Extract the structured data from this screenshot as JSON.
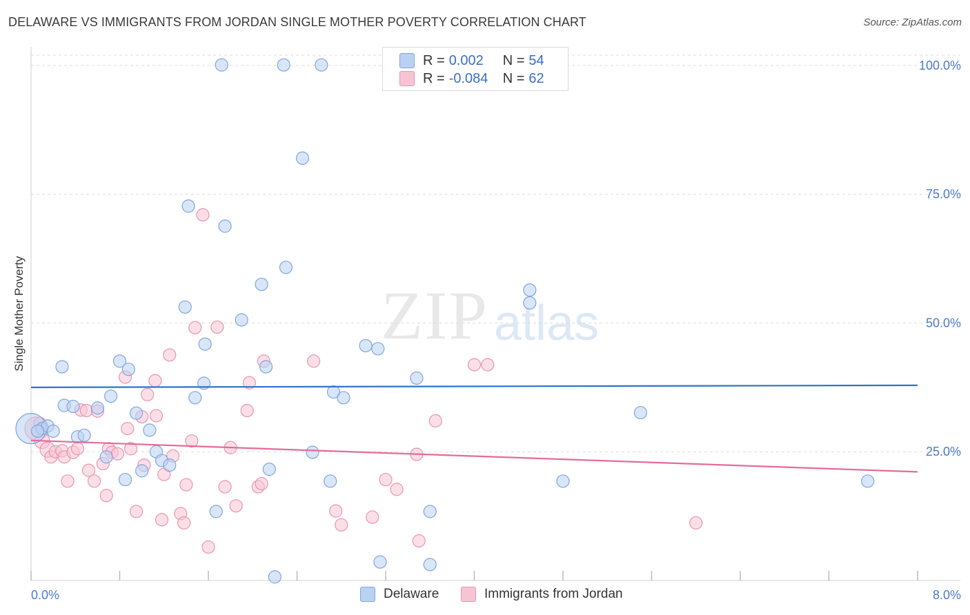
{
  "header": {
    "title": "DELAWARE VS IMMIGRANTS FROM JORDAN SINGLE MOTHER POVERTY CORRELATION CHART",
    "source": "Source: ZipAtlas.com"
  },
  "watermark": {
    "zip": "ZIP",
    "atlas": "atlas"
  },
  "legend_top": {
    "rows": [
      {
        "r_label": "R =",
        "r_value": "0.002",
        "n_label": "N =",
        "n_value": "54"
      },
      {
        "r_label": "R =",
        "r_value": "-0.084",
        "n_label": "N =",
        "n_value": "62"
      }
    ]
  },
  "legend_bottom": {
    "items": [
      {
        "label": "Delaware"
      },
      {
        "label": "Immigrants from Jordan"
      }
    ]
  },
  "colors": {
    "blue_fill": "#b9d1f2",
    "blue_stroke": "#7ea7dc",
    "blue_line": "#2f72c9",
    "pink_fill": "#f7c4d4",
    "pink_stroke": "#e994b0",
    "pink_line": "#e56b98",
    "grid": "#dcdcdc",
    "axis_text": "#4a7cc6"
  },
  "chart_data": {
    "type": "scatter",
    "title": "DELAWARE VS IMMIGRANTS FROM JORDAN SINGLE MOTHER POVERTY CORRELATION CHART",
    "xlabel": "",
    "ylabel": "Single Mother Poverty",
    "xlim": [
      0,
      8.0
    ],
    "ylim": [
      0,
      102
    ],
    "x_tick_labels": [
      "0.0%",
      "8.0%"
    ],
    "y_ticks": [
      25,
      50,
      75,
      100
    ],
    "y_tick_labels": [
      "25.0%",
      "50.0%",
      "75.0%",
      "100.0%"
    ],
    "grid": true,
    "legend_position": "top-center",
    "series": [
      {
        "name": "Delaware",
        "r": 0.002,
        "n": 54,
        "trend": {
          "x": [
            0,
            8.0
          ],
          "y": [
            37.5,
            37.9
          ]
        },
        "points": [
          [
            0.0,
            29.5,
            22
          ],
          [
            0.1,
            29.5,
            9
          ],
          [
            0.15,
            30.0,
            9
          ],
          [
            0.2,
            29.0,
            9
          ],
          [
            0.28,
            41.5,
            9
          ],
          [
            0.3,
            34.0,
            9
          ],
          [
            0.38,
            33.8,
            9
          ],
          [
            0.42,
            27.9,
            9
          ],
          [
            0.48,
            28.2,
            9
          ],
          [
            0.6,
            33.5,
            9
          ],
          [
            0.68,
            24.0,
            9
          ],
          [
            0.72,
            35.8,
            9
          ],
          [
            0.8,
            42.6,
            9
          ],
          [
            0.85,
            19.6,
            9
          ],
          [
            0.88,
            41.0,
            9
          ],
          [
            0.95,
            32.5,
            9
          ],
          [
            1.0,
            21.3,
            9
          ],
          [
            1.07,
            29.2,
            9
          ],
          [
            1.13,
            25.0,
            9
          ],
          [
            1.18,
            23.3,
            9
          ],
          [
            1.25,
            22.4,
            9
          ],
          [
            1.39,
            53.1,
            9
          ],
          [
            1.42,
            72.7,
            9
          ],
          [
            1.48,
            35.5,
            9
          ],
          [
            1.56,
            38.3,
            9
          ],
          [
            1.57,
            45.9,
            9
          ],
          [
            1.67,
            13.4,
            9
          ],
          [
            1.75,
            68.8,
            9
          ],
          [
            1.72,
            100.1,
            9
          ],
          [
            1.9,
            50.6,
            9
          ],
          [
            2.08,
            57.5,
            9
          ],
          [
            2.12,
            41.5,
            9
          ],
          [
            2.2,
            0.7,
            9
          ],
          [
            2.15,
            21.6,
            9
          ],
          [
            2.3,
            60.8,
            9
          ],
          [
            2.28,
            100.1,
            9
          ],
          [
            2.45,
            82.0,
            9
          ],
          [
            2.54,
            24.9,
            9
          ],
          [
            2.62,
            100.1,
            9
          ],
          [
            2.7,
            19.3,
            9
          ],
          [
            2.73,
            36.6,
            9
          ],
          [
            2.82,
            35.5,
            9
          ],
          [
            3.02,
            45.6,
            9
          ],
          [
            3.13,
            45.0,
            9
          ],
          [
            3.15,
            3.6,
            9
          ],
          [
            3.48,
            39.3,
            9
          ],
          [
            3.6,
            3.1,
            9
          ],
          [
            3.6,
            13.4,
            9
          ],
          [
            4.5,
            56.4,
            9
          ],
          [
            4.5,
            53.9,
            9
          ],
          [
            4.8,
            19.3,
            9
          ],
          [
            5.5,
            32.6,
            9
          ],
          [
            7.55,
            19.3,
            9
          ],
          [
            0.06,
            29.0,
            9
          ]
        ]
      },
      {
        "name": "Immigrants from Jordan",
        "r": -0.084,
        "n": 62,
        "trend": {
          "x": [
            0,
            8.0
          ],
          "y": [
            27.2,
            21.1
          ]
        },
        "points": [
          [
            0.05,
            29.5,
            17
          ],
          [
            0.1,
            27.1,
            11
          ],
          [
            0.15,
            25.4,
            11
          ],
          [
            0.18,
            24.0,
            9
          ],
          [
            0.22,
            25.0,
            9
          ],
          [
            0.28,
            25.2,
            9
          ],
          [
            0.3,
            24.0,
            9
          ],
          [
            0.33,
            19.3,
            9
          ],
          [
            0.38,
            24.9,
            9
          ],
          [
            0.42,
            25.6,
            9
          ],
          [
            0.45,
            33.1,
            9
          ],
          [
            0.5,
            33.0,
            9
          ],
          [
            0.52,
            21.4,
            9
          ],
          [
            0.57,
            19.3,
            9
          ],
          [
            0.6,
            32.9,
            9
          ],
          [
            0.65,
            22.7,
            9
          ],
          [
            0.68,
            16.5,
            9
          ],
          [
            0.7,
            25.6,
            9
          ],
          [
            0.73,
            24.9,
            9
          ],
          [
            0.78,
            24.6,
            9
          ],
          [
            0.85,
            39.5,
            9
          ],
          [
            0.87,
            29.5,
            9
          ],
          [
            0.9,
            25.6,
            9
          ],
          [
            0.95,
            13.4,
            9
          ],
          [
            1.0,
            31.8,
            9
          ],
          [
            1.02,
            22.4,
            9
          ],
          [
            1.05,
            36.1,
            9
          ],
          [
            1.12,
            38.8,
            9
          ],
          [
            1.13,
            32.0,
            9
          ],
          [
            1.18,
            11.8,
            9
          ],
          [
            1.2,
            20.6,
            9
          ],
          [
            1.25,
            43.8,
            9
          ],
          [
            1.28,
            24.2,
            9
          ],
          [
            1.35,
            13.0,
            9
          ],
          [
            1.38,
            11.2,
            9
          ],
          [
            1.4,
            18.6,
            9
          ],
          [
            1.45,
            27.1,
            9
          ],
          [
            1.48,
            49.1,
            9
          ],
          [
            1.55,
            71.0,
            9
          ],
          [
            1.6,
            6.5,
            9
          ],
          [
            1.68,
            49.2,
            9
          ],
          [
            1.75,
            18.2,
            9
          ],
          [
            1.8,
            25.8,
            9
          ],
          [
            1.85,
            14.5,
            9
          ],
          [
            1.95,
            33.0,
            9
          ],
          [
            1.97,
            38.4,
            9
          ],
          [
            2.05,
            18.2,
            9
          ],
          [
            2.08,
            18.8,
            9
          ],
          [
            2.1,
            42.6,
            9
          ],
          [
            2.55,
            42.6,
            9
          ],
          [
            2.75,
            13.5,
            9
          ],
          [
            2.8,
            10.8,
            9
          ],
          [
            3.08,
            12.3,
            9
          ],
          [
            3.2,
            19.6,
            9
          ],
          [
            3.3,
            17.7,
            9
          ],
          [
            3.48,
            24.5,
            9
          ],
          [
            3.5,
            7.7,
            9
          ],
          [
            3.65,
            31.0,
            9
          ],
          [
            4.0,
            41.9,
            9
          ],
          [
            4.12,
            41.9,
            9
          ],
          [
            6.0,
            11.2,
            9
          ],
          [
            0.08,
            30.5,
            9
          ]
        ]
      }
    ]
  }
}
